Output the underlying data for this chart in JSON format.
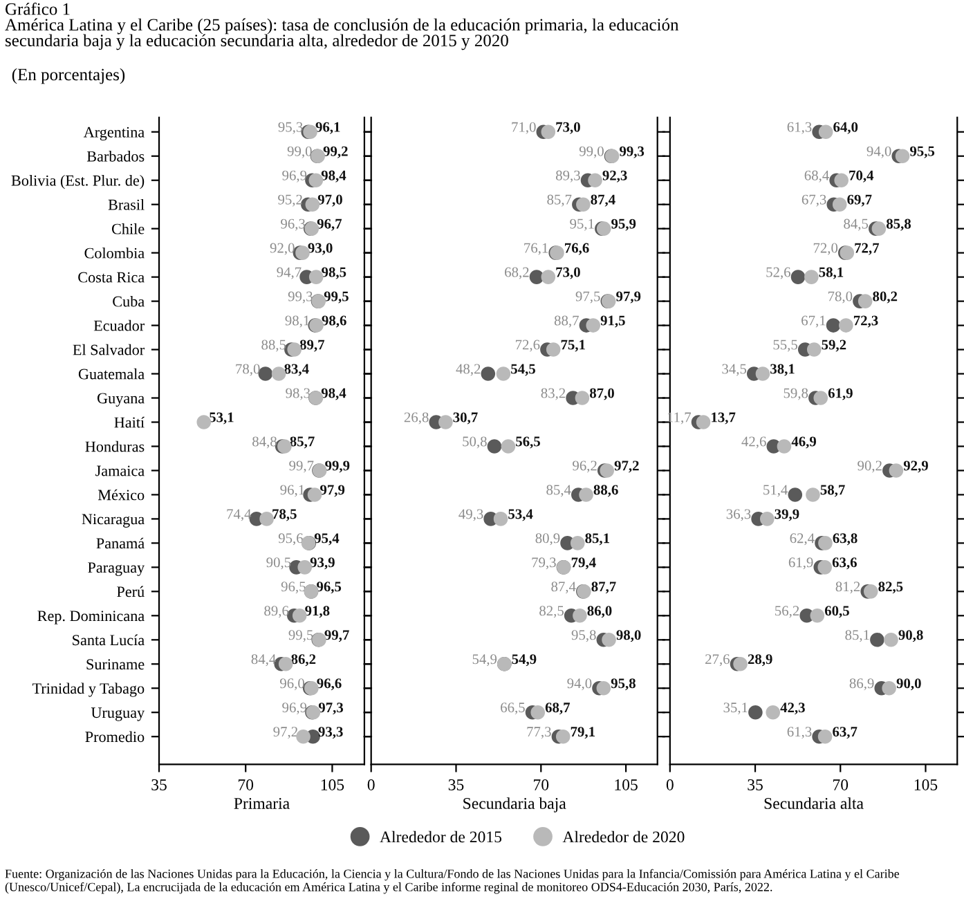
{
  "chart_data": [
    {
      "type": "scatter",
      "orientation": "horizontal",
      "title": "Gráfico 1\nAmérica Latina y el Caribe (25 países): tasa de conclusión de la educación primaria, la educación\nsecundaria baja y la educación secundaria alta, alrededor de 2015 y 2020",
      "subtitle": "(En porcentajes)",
      "xlabel": "Primaria",
      "categories": [
        "Argentina",
        "Barbados",
        "Bolivia (Est. Plur. de)",
        "Brasil",
        "Chile",
        "Colombia",
        "Costa Rica",
        "Cuba",
        "Ecuador",
        "El Salvador",
        "Guatemala",
        "Guyana",
        "Haití",
        "Honduras",
        "Jamaica",
        "México",
        "Nicaragua",
        "Panamá",
        "Paraguay",
        "Perú",
        "Rep. Dominicana",
        "Santa Lucía",
        "Suriname",
        "Trinidad y Tabago",
        "Uruguay",
        "Promedio"
      ],
      "xlim": [
        35,
        118
      ],
      "xticks": [
        35,
        70,
        105
      ],
      "marker": "circle",
      "grid": false,
      "legend": false,
      "series": [
        {
          "color": "#5a5a5a",
          "values": [
            95.3,
            99.0,
            96.9,
            95.2,
            96.3,
            92.0,
            94.7,
            99.3,
            98.1,
            88.5,
            78.0,
            98.3,
            null,
            84.8,
            99.7,
            96.1,
            74.4,
            95.6,
            90.5,
            96.5,
            89.6,
            99.5,
            84.4,
            96.0,
            96.9,
            97.2
          ],
          "value_labels": [
            "95,3",
            "99,0",
            "96,9",
            "95,2",
            "96,3",
            "92,0",
            "94,7",
            "99,3",
            "98,1",
            "88,5",
            "78,0",
            "98,3",
            null,
            "84,8",
            "99,7",
            "96,1",
            "74,4",
            "95,6",
            "90,5",
            "96,5",
            "89,6",
            "99,5",
            "84,4",
            "96,0",
            "96,9",
            "97,2"
          ]
        },
        {
          "color": "#b9b9b9",
          "values": [
            96.1,
            99.2,
            98.4,
            97.0,
            96.7,
            93.0,
            98.5,
            99.5,
            98.6,
            89.7,
            83.4,
            98.4,
            53.1,
            85.7,
            99.9,
            97.9,
            78.5,
            95.4,
            93.9,
            96.5,
            91.8,
            99.7,
            86.2,
            96.6,
            97.3,
            93.3
          ],
          "value_labels": [
            "96,1",
            "99,2",
            "98,4",
            "97,0",
            "96,7",
            "93,0",
            "98,5",
            "99,5",
            "98,6",
            "89,7",
            "83,4",
            "98,4",
            "53,1",
            "85,7",
            "99,9",
            "97,9",
            "78,5",
            "95,4",
            "93,9",
            "96,5",
            "91,8",
            "99,7",
            "86,2",
            "96,6",
            "97,3",
            "93,3"
          ]
        }
      ],
      "annotations": [
        "Fuente: Organización de las Naciones Unidas para la Educación, la Ciencia y la Cultura/Fondo de las Naciones Unidas para la Infancia/Comissión para América Latina y el Caribe (Unesco/Unicef/Cepal), La encrucijada de la educación em América Latina y el Caribe informe reginal de monitoreo ODS4-Educación 2030, París, 2022."
      ]
    },
    {
      "type": "scatter",
      "orientation": "horizontal",
      "xlabel": "Secundaria baja",
      "tick_labels": "x",
      "xlim": [
        0,
        118
      ],
      "xticks": [
        0,
        35,
        70,
        105
      ],
      "marker": "circle",
      "grid": false,
      "legend": "bottom",
      "series": [
        {
          "name": "Alrededor de 2015",
          "color": "#5a5a5a",
          "values": [
            71.0,
            99.0,
            89.3,
            85.7,
            95.1,
            76.1,
            68.2,
            97.5,
            88.7,
            72.6,
            48.2,
            83.2,
            26.8,
            50.8,
            96.2,
            85.4,
            49.3,
            80.9,
            79.3,
            87.4,
            82.5,
            95.8,
            54.9,
            94.0,
            66.5,
            77.3
          ],
          "value_labels": [
            "71,0",
            "99,0",
            "89,3",
            "85,7",
            "95,1",
            "76,1",
            "68,2",
            "97,5",
            "88,7",
            "72,6",
            "48,2",
            "83,2",
            "26,8",
            "50,8",
            "96,2",
            "85,4",
            "49,3",
            "80,9",
            "79,3",
            "87,4",
            "82,5",
            "95,8",
            "54,9",
            "94,0",
            "66,5",
            "77,3"
          ]
        },
        {
          "name": "Alrededor de 2020",
          "color": "#b9b9b9",
          "values": [
            73.0,
            99.3,
            92.3,
            87.4,
            95.9,
            76.6,
            73.0,
            97.9,
            91.5,
            75.1,
            54.5,
            87.0,
            30.7,
            56.5,
            97.2,
            88.6,
            53.4,
            85.1,
            79.4,
            87.7,
            86.0,
            98.0,
            54.9,
            95.8,
            68.7,
            79.1
          ],
          "value_labels": [
            "73,0",
            "99,3",
            "92,3",
            "87,4",
            "95,9",
            "76,6",
            "73,0",
            "97,9",
            "91,5",
            "75,1",
            "54,5",
            "87,0",
            "30,7",
            "56,5",
            "97,2",
            "88,6",
            "53,4",
            "85,1",
            "79,4",
            "87,7",
            "86,0",
            "98,0",
            "54,9",
            "95,8",
            "68,7",
            "79,1"
          ]
        }
      ]
    },
    {
      "type": "scatter",
      "orientation": "horizontal",
      "xlabel": "Secundaria alta",
      "tick_labels": "x",
      "xlim": [
        0,
        118
      ],
      "xticks": [
        0,
        35,
        70,
        105
      ],
      "marker": "circle",
      "grid": false,
      "legend": false,
      "series": [
        {
          "color": "#5a5a5a",
          "values": [
            61.3,
            94.0,
            68.4,
            67.3,
            84.5,
            72.0,
            52.6,
            78.0,
            67.1,
            55.5,
            34.5,
            59.8,
            11.7,
            42.6,
            90.2,
            51.4,
            36.3,
            62.4,
            61.9,
            81.2,
            56.2,
            85.1,
            27.6,
            86.9,
            35.1,
            61.3
          ],
          "value_labels": [
            "61,3",
            "94,0",
            "68,4",
            "67,3",
            "84,5",
            "72,0",
            "52,6",
            "78,0",
            "67,1",
            "55,5",
            "34,5",
            "59,8",
            "11,7",
            "42,6",
            "90,2",
            "51,4",
            "36,3",
            "62,4",
            "61,9",
            "81,2",
            "56,2",
            "85,1",
            "27,6",
            "86,9",
            "35,1",
            "61,3"
          ]
        },
        {
          "color": "#b9b9b9",
          "values": [
            64.0,
            95.5,
            70.4,
            69.7,
            85.8,
            72.7,
            58.1,
            80.2,
            72.3,
            59.2,
            38.1,
            61.9,
            13.7,
            46.9,
            92.9,
            58.7,
            39.9,
            63.8,
            63.6,
            82.5,
            60.5,
            90.8,
            28.9,
            90.0,
            42.3,
            63.7
          ],
          "value_labels": [
            "64,0",
            "95,5",
            "70,4",
            "69,7",
            "85,8",
            "72,7",
            "58,1",
            "80,2",
            "72,3",
            "59,2",
            "38,1",
            "61,9",
            "13,7",
            "46,9",
            "92,9",
            "58,7",
            "39,9",
            "63,8",
            "63,6",
            "82,5",
            "60,5",
            "90,8",
            "28,9",
            "90,0",
            "42,3",
            "63,7"
          ]
        }
      ]
    }
  ]
}
